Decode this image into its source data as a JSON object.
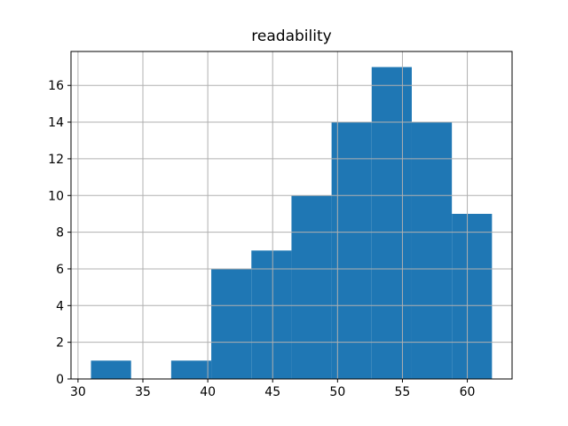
{
  "chart_data": {
    "type": "bar",
    "subtype": "histogram",
    "title": "readability",
    "xlabel": "",
    "ylabel": "",
    "bin_edges": [
      31.0,
      34.09,
      37.18,
      40.27,
      43.36,
      46.45,
      49.54,
      52.63,
      55.72,
      58.81,
      61.9
    ],
    "counts": [
      1,
      0,
      1,
      6,
      7,
      10,
      14,
      17,
      14,
      9
    ],
    "xticks": [
      30,
      35,
      40,
      45,
      50,
      55,
      60
    ],
    "yticks": [
      0,
      2,
      4,
      6,
      8,
      10,
      12,
      14,
      16
    ],
    "xlim": [
      29.46,
      63.45
    ],
    "ylim": [
      0,
      17.85
    ],
    "grid": true,
    "legend": null,
    "colors": {
      "bar": "#1f77b4",
      "grid": "#b0b0b0",
      "spine": "#000000",
      "background": "#ffffff"
    }
  }
}
